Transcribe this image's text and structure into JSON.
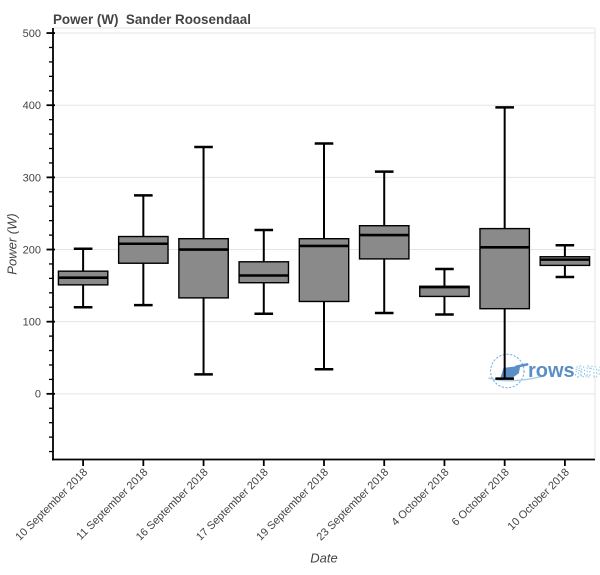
{
  "chart_data": {
    "type": "box",
    "title": "Power (W)  Sander Roosendaal",
    "xlabel": "Date",
    "ylabel": "Power (W)",
    "categories": [
      "10 September 2018",
      "11 September 2018",
      "16 September 2018",
      "17 September 2018",
      "19 September 2018",
      "23 September 2018",
      "4 October 2018",
      "6 October 2018",
      "10 October 2018"
    ],
    "series": [
      {
        "name": "Power (W)",
        "boxes": [
          {
            "category": "10 September 2018",
            "whisker_low": 120,
            "q1": 151,
            "median": 161,
            "q3": 170,
            "whisker_high": 201
          },
          {
            "category": "11 September 2018",
            "whisker_low": 123,
            "q1": 181,
            "median": 208,
            "q3": 218,
            "whisker_high": 275
          },
          {
            "category": "16 September 2018",
            "whisker_low": 27,
            "q1": 133,
            "median": 200,
            "q3": 215,
            "whisker_high": 342
          },
          {
            "category": "17 September 2018",
            "whisker_low": 111,
            "q1": 154,
            "median": 164,
            "q3": 183,
            "whisker_high": 227
          },
          {
            "category": "19 September 2018",
            "whisker_low": 34,
            "q1": 128,
            "median": 205,
            "q3": 215,
            "whisker_high": 347
          },
          {
            "category": "23 September 2018",
            "whisker_low": 112,
            "q1": 187,
            "median": 220,
            "q3": 233,
            "whisker_high": 308
          },
          {
            "category": "4 October 2018",
            "whisker_low": 110,
            "q1": 135,
            "median": 148,
            "q3": 149,
            "whisker_high": 173
          },
          {
            "category": "6 October 2018",
            "whisker_low": 21,
            "q1": 118,
            "median": 203,
            "q3": 229,
            "whisker_high": 397
          },
          {
            "category": "10 October 2018",
            "whisker_low": 162,
            "q1": 178,
            "median": 186,
            "q3": 190,
            "whisker_high": 206
          }
        ]
      }
    ],
    "ylim": [
      -91,
      507
    ],
    "yticks": [
      0,
      100,
      200,
      300,
      400,
      500
    ],
    "y_minor_tick_step": 20,
    "grid": "horizontal-only",
    "legend": "none",
    "x_tick_label_rotation_deg": 45,
    "colors": {
      "box_fill": "#8a8a8a",
      "box_line": "#000000",
      "grid_line": "#e5e5e5",
      "frame_border": "#e5e5e5",
      "axis_line": "#000000",
      "label_text": "#444444",
      "title_text": "#444444"
    },
    "watermark": {
      "text_solid": "rows",
      "text_outline": "andall",
      "color_solid": "#5b8fc4",
      "color_outline": "#7fc0e4",
      "color_circle": "#5b9bd5",
      "color_blade": "#5b8fc6",
      "color_swoosh": "#a8cfe9",
      "icon": "rowing-blade-circle"
    }
  }
}
